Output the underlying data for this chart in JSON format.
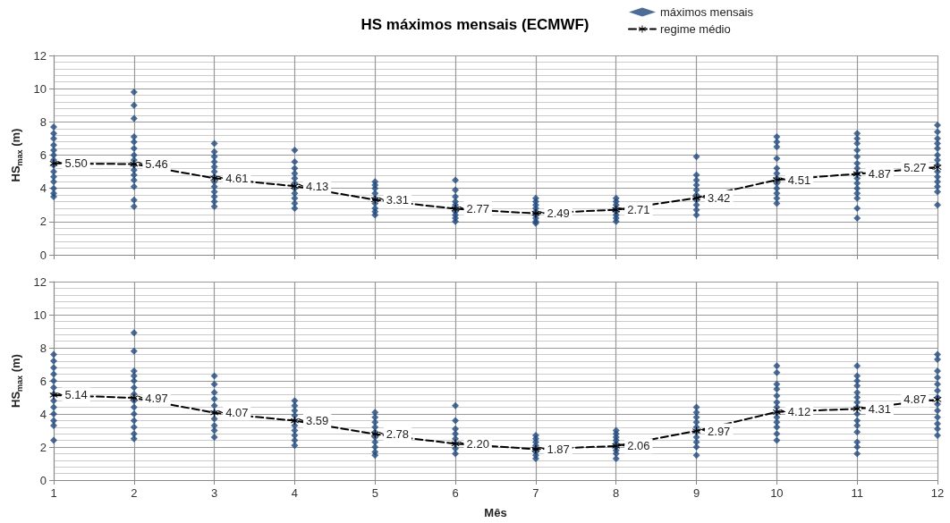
{
  "chart_data": [
    {
      "type": "scatter",
      "title": "HS máximos mensais (ECMWF)",
      "ylabel": "HS$_{max}$ (m)",
      "xlim": [
        1,
        12
      ],
      "xticks": [
        1,
        2,
        3,
        4,
        5,
        6,
        7,
        8,
        9,
        10,
        11,
        12
      ],
      "ylim": [
        0,
        12
      ],
      "yticks": [
        0,
        2,
        4,
        6,
        8,
        10,
        12
      ],
      "grid": true,
      "legend": "top right",
      "tick_labels": "y",
      "series": [
        {
          "name": "máximos mensais",
          "marker": "diamond",
          "color": "#1f497d",
          "x": [
            1,
            1,
            1,
            1,
            1,
            1,
            1,
            1,
            1,
            1,
            1,
            1,
            1,
            1,
            2,
            2,
            2,
            2,
            2,
            2,
            2,
            2,
            2,
            2,
            2,
            2,
            2,
            2,
            2,
            3,
            3,
            3,
            3,
            3,
            3,
            3,
            3,
            3,
            3,
            3,
            3,
            3,
            4,
            4,
            4,
            4,
            4,
            4,
            4,
            4,
            4,
            4,
            4,
            5,
            5,
            5,
            5,
            5,
            5,
            5,
            5,
            5,
            6,
            6,
            6,
            6,
            6,
            6,
            6,
            6,
            6,
            6,
            7,
            7,
            7,
            7,
            7,
            7,
            7,
            7,
            7,
            8,
            8,
            8,
            8,
            8,
            8,
            8,
            8,
            9,
            9,
            9,
            9,
            9,
            9,
            9,
            9,
            9,
            9,
            10,
            10,
            10,
            10,
            10,
            10,
            10,
            10,
            10,
            10,
            10,
            10,
            11,
            11,
            11,
            11,
            11,
            11,
            11,
            11,
            11,
            11,
            11,
            11,
            11,
            11,
            11,
            12,
            12,
            12,
            12,
            12,
            12,
            12,
            12,
            12,
            12,
            12,
            12,
            12,
            12
          ],
          "values": [
            7.7,
            7.3,
            7.0,
            6.6,
            6.3,
            6.0,
            5.7,
            5.4,
            5.0,
            4.7,
            4.4,
            4.0,
            3.7,
            3.5,
            9.8,
            9.0,
            8.2,
            7.1,
            6.8,
            6.4,
            6.0,
            5.7,
            5.4,
            5.1,
            4.8,
            4.5,
            4.1,
            3.3,
            2.9,
            6.7,
            6.2,
            5.9,
            5.6,
            5.3,
            5.0,
            4.7,
            4.4,
            4.1,
            3.8,
            3.5,
            3.2,
            2.9,
            6.3,
            5.6,
            5.2,
            4.9,
            4.6,
            4.3,
            4.0,
            3.7,
            3.4,
            3.1,
            2.8,
            4.4,
            4.2,
            4.0,
            3.7,
            3.4,
            3.1,
            2.8,
            2.6,
            2.4,
            4.5,
            3.9,
            3.5,
            3.2,
            3.0,
            2.8,
            2.6,
            2.4,
            2.2,
            2.0,
            3.4,
            3.2,
            3.0,
            2.8,
            2.6,
            2.4,
            2.2,
            2.0,
            1.9,
            3.4,
            3.2,
            3.0,
            2.8,
            2.6,
            2.4,
            2.2,
            2.0,
            5.9,
            4.8,
            4.5,
            4.2,
            3.9,
            3.6,
            3.3,
            3.0,
            2.7,
            2.4,
            7.1,
            6.8,
            6.5,
            5.8,
            5.2,
            4.9,
            4.6,
            4.3,
            4.0,
            3.7,
            3.4,
            3.1,
            7.3,
            7.0,
            6.7,
            6.3,
            5.9,
            5.5,
            5.2,
            4.9,
            4.6,
            4.3,
            4.0,
            3.7,
            3.4,
            2.8,
            2.2,
            7.8,
            7.4,
            7.0,
            6.7,
            6.4,
            6.0,
            5.7,
            5.4,
            5.0,
            4.7,
            4.4,
            4.1,
            3.8,
            3.0
          ]
        },
        {
          "name": "regime médio",
          "type": "line",
          "marker": "cross",
          "line_style": "dashed",
          "color": "#000000",
          "x": [
            1,
            2,
            3,
            4,
            5,
            6,
            7,
            8,
            9,
            10,
            11,
            12
          ],
          "values": [
            5.5,
            5.46,
            4.61,
            4.13,
            3.31,
            2.77,
            2.49,
            2.71,
            3.42,
            4.51,
            4.87,
            5.27
          ],
          "value_labels": [
            "5.50",
            "5.46",
            "4.61",
            "4.13",
            "3.31",
            "2.77",
            "2.49",
            "2.71",
            "3.42",
            "4.51",
            "4.87",
            "5.27"
          ]
        }
      ]
    },
    {
      "type": "scatter",
      "xlabel": "Mês",
      "ylabel": "HS$_{max}$ (m)",
      "xlim": [
        1,
        12
      ],
      "xticks": [
        1,
        2,
        3,
        4,
        5,
        6,
        7,
        8,
        9,
        10,
        11,
        12
      ],
      "ylim": [
        0,
        12
      ],
      "yticks": [
        0,
        2,
        4,
        6,
        8,
        10,
        12
      ],
      "grid": true,
      "series": [
        {
          "marker": "diamond",
          "color": "#1f497d",
          "x": [
            1,
            1,
            1,
            1,
            1,
            1,
            1,
            1,
            1,
            1,
            1,
            1,
            1,
            2,
            2,
            2,
            2,
            2,
            2,
            2,
            2,
            2,
            2,
            2,
            2,
            2,
            2,
            3,
            3,
            3,
            3,
            3,
            3,
            3,
            3,
            3,
            3,
            4,
            4,
            4,
            4,
            4,
            4,
            4,
            4,
            4,
            4,
            5,
            5,
            5,
            5,
            5,
            5,
            5,
            5,
            5,
            5,
            6,
            6,
            6,
            6,
            6,
            6,
            6,
            6,
            7,
            7,
            7,
            7,
            7,
            7,
            7,
            7,
            8,
            8,
            8,
            8,
            8,
            8,
            8,
            8,
            8,
            9,
            9,
            9,
            9,
            9,
            9,
            9,
            9,
            9,
            9,
            10,
            10,
            10,
            10,
            10,
            10,
            10,
            10,
            10,
            10,
            10,
            10,
            10,
            11,
            11,
            11,
            11,
            11,
            11,
            11,
            11,
            11,
            11,
            11,
            11,
            11,
            11,
            11,
            12,
            12,
            12,
            12,
            12,
            12,
            12,
            12,
            12,
            12,
            12,
            12,
            12
          ],
          "values": [
            7.6,
            7.2,
            6.8,
            6.4,
            6.0,
            5.6,
            5.2,
            4.8,
            4.4,
            4.0,
            3.6,
            3.3,
            2.4,
            8.9,
            7.8,
            6.6,
            6.3,
            6.0,
            5.6,
            5.2,
            4.8,
            4.4,
            4.0,
            3.6,
            3.2,
            2.8,
            2.5,
            6.3,
            5.8,
            5.3,
            4.9,
            4.5,
            4.1,
            3.7,
            3.3,
            3.0,
            2.6,
            4.8,
            4.5,
            4.2,
            3.9,
            3.6,
            3.3,
            3.0,
            2.7,
            2.4,
            2.1,
            4.1,
            3.8,
            3.5,
            3.2,
            2.9,
            2.6,
            2.3,
            2.0,
            1.7,
            1.5,
            4.5,
            3.6,
            3.1,
            2.8,
            2.5,
            2.2,
            1.9,
            1.6,
            2.7,
            2.5,
            2.3,
            2.1,
            1.9,
            1.7,
            1.5,
            1.3,
            3.0,
            2.8,
            2.6,
            2.4,
            2.2,
            2.0,
            1.8,
            1.6,
            1.3,
            4.4,
            4.1,
            3.8,
            3.5,
            3.2,
            2.9,
            2.6,
            2.3,
            2.0,
            1.5,
            6.9,
            6.5,
            5.8,
            5.5,
            5.1,
            4.7,
            4.4,
            4.1,
            3.8,
            3.5,
            3.2,
            2.8,
            2.4,
            6.9,
            6.3,
            6.0,
            5.7,
            5.3,
            5.0,
            4.7,
            4.4,
            4.0,
            3.6,
            3.3,
            2.9,
            2.3,
            2.0,
            1.6,
            7.6,
            7.3,
            6.6,
            6.2,
            5.8,
            5.4,
            5.0,
            4.6,
            4.2,
            3.8,
            3.4,
            3.1,
            2.7
          ]
        },
        {
          "type": "line",
          "marker": "cross",
          "line_style": "dashed",
          "color": "#000000",
          "x": [
            1,
            2,
            3,
            4,
            5,
            6,
            7,
            8,
            9,
            10,
            11,
            12
          ],
          "values": [
            5.14,
            4.97,
            4.07,
            3.59,
            2.78,
            2.2,
            1.87,
            2.06,
            2.97,
            4.12,
            4.31,
            4.87
          ],
          "value_labels": [
            "5.14",
            "4.97",
            "4.07",
            "3.59",
            "2.78",
            "2.20",
            "1.87",
            "2.06",
            "2.97",
            "4.12",
            "4.31",
            "4.87"
          ]
        }
      ]
    }
  ]
}
